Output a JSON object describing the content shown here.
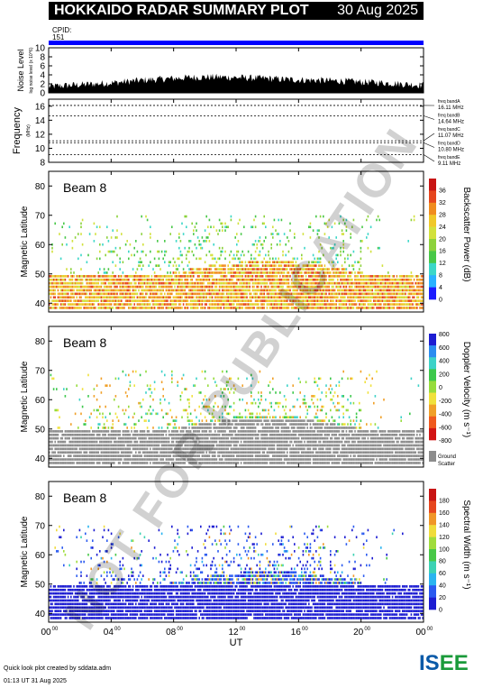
{
  "header": {
    "title": "HOKKAIDO RADAR SUMMARY PLOT",
    "date": "30 Aug 2025",
    "cpid_label": "CPID:",
    "cpid_value": "151",
    "cpid_color": "#0000ff"
  },
  "footer": {
    "line1": "Quick look plot created by sddata.adm",
    "line2": "01:13 UT 31 Aug 2025"
  },
  "logo": {
    "part1": "IS",
    "part2": "E",
    "part3": "E"
  },
  "watermark": "NOT FOR PUBLICATION",
  "chart_data": [
    {
      "type": "area",
      "name_panel": "noise",
      "ylabel": "Noise Level",
      "ylabel_unit": "log noise level (x 10^6)",
      "ylim": [
        0,
        10
      ],
      "yticks": [
        0,
        2,
        4,
        6,
        8,
        10
      ],
      "x": [
        0,
        1,
        2,
        3,
        4,
        5,
        6,
        7,
        8,
        9,
        10,
        11,
        12,
        13,
        14,
        15,
        16,
        17,
        18,
        19,
        20,
        21,
        22,
        23,
        24
      ],
      "values": [
        1.4,
        1.6,
        1.8,
        2.0,
        2.2,
        2.5,
        2.8,
        3.0,
        3.2,
        3.4,
        3.5,
        3.5,
        3.4,
        3.3,
        3.2,
        3.0,
        2.9,
        2.8,
        2.7,
        2.6,
        2.4,
        2.3,
        2.1,
        1.9,
        1.7
      ],
      "xlim": [
        0,
        24
      ]
    },
    {
      "type": "line",
      "name_panel": "frequency",
      "ylabel": "Frequency",
      "ylabel_unit": "(MHz)",
      "ylim": [
        8,
        17
      ],
      "yticks": [
        8,
        10,
        12,
        14,
        16
      ],
      "series": [
        {
          "name": "freq bandA",
          "label": "16.11 MHz",
          "value": 16.11
        },
        {
          "name": "freq bandB",
          "label": "14.64 MHz",
          "value": 14.64
        },
        {
          "name": "freq bandC",
          "label": "11.07 MHz",
          "value": 11.07
        },
        {
          "name": "freq bandD",
          "label": "10.80 MHz",
          "value": 10.8
        },
        {
          "name": "freq bandE",
          "label": "9.11 MHz",
          "value": 9.11
        }
      ],
      "xlim": [
        0,
        24
      ]
    },
    {
      "type": "heatmap",
      "name_panel": "power",
      "beam_label": "Beam  8",
      "ylabel": "Magnetic Latitude",
      "ylim": [
        37,
        85
      ],
      "yticks": [
        40,
        50,
        60,
        70,
        80
      ],
      "colorbar_label": "Backscatter Power (dB)",
      "colorbar_ticks": [
        "0",
        "4",
        "8",
        "12",
        "16",
        "20",
        "24",
        "28",
        "32",
        "36"
      ],
      "colorbar_colors": [
        "#1c1cff",
        "#2ab2ff",
        "#3cd7c8",
        "#48c848",
        "#8cd23c",
        "#d2e13c",
        "#f0c828",
        "#f08c1e",
        "#e6461e",
        "#c81414"
      ],
      "xlim": [
        0,
        24
      ]
    },
    {
      "type": "heatmap",
      "name_panel": "velocity",
      "beam_label": "Beam  8",
      "ylabel": "Magnetic Latitude",
      "ylim": [
        37,
        85
      ],
      "yticks": [
        40,
        50,
        60,
        70,
        80
      ],
      "colorbar_label": "Doppler Velocity (m s⁻¹)",
      "colorbar_ticks": [
        "-800",
        "-600",
        "-400",
        "-200",
        "0",
        "200",
        "400",
        "600",
        "800"
      ],
      "colorbar_colors": [
        "#d21414",
        "#f05a1e",
        "#f0a028",
        "#f0e13c",
        "#96dc3c",
        "#3cc84b",
        "#3cd2c8",
        "#2a8cf0",
        "#1c1cd2"
      ],
      "ground_scatter_label": "Ground Scatter",
      "ground_scatter_color": "#8c8c8c",
      "xlim": [
        0,
        24
      ]
    },
    {
      "type": "heatmap",
      "name_panel": "width",
      "beam_label": "Beam  8",
      "ylabel": "Magnetic Latitude",
      "ylim": [
        37,
        85
      ],
      "yticks": [
        40,
        50,
        60,
        70,
        80
      ],
      "colorbar_label": "Spectral Width (m s⁻¹)",
      "colorbar_ticks": [
        "0",
        "20",
        "40",
        "60",
        "80",
        "100",
        "120",
        "140",
        "160",
        "180"
      ],
      "colorbar_colors": [
        "#1c1cd2",
        "#2a5af0",
        "#2ab4f0",
        "#3cd2b4",
        "#48c848",
        "#a0dc3c",
        "#f0dc3c",
        "#f09628",
        "#e6461e",
        "#c81414"
      ],
      "xlim": [
        0,
        24
      ]
    }
  ],
  "x_axis": {
    "label": "UT",
    "ticks": [
      {
        "h": "00",
        "m": "00",
        "v": 0
      },
      {
        "h": "04",
        "m": "00",
        "v": 4
      },
      {
        "h": "08",
        "m": "00",
        "v": 8
      },
      {
        "h": "12",
        "m": "00",
        "v": 12
      },
      {
        "h": "16",
        "m": "00",
        "v": 16
      },
      {
        "h": "20",
        "m": "00",
        "v": 20
      },
      {
        "h": "00",
        "m": "00",
        "v": 24
      }
    ]
  }
}
